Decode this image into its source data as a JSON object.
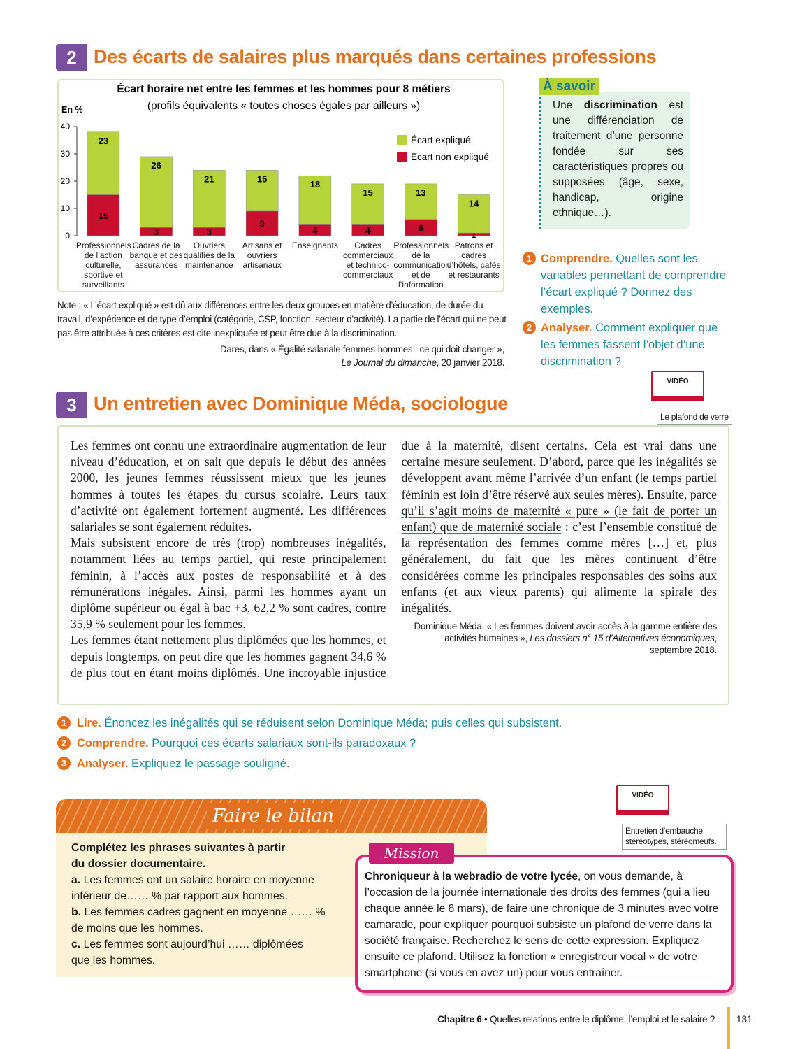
{
  "section2": {
    "number": "2",
    "title": "Des écarts de salaires plus marqués dans certaines professions"
  },
  "chart_data": {
    "type": "bar",
    "stacked": true,
    "title": "Écart horaire net entre les femmes et les hommes pour 8 métiers",
    "subtitle": "(profils équivalents « toutes choses égales par ailleurs »)",
    "y_label": "En %",
    "categories": [
      "Professionnels de l’action culturelle, sportive et surveillants",
      "Cadres de la banque et des assurances",
      "Ouvriers qualifiés de la maintenance",
      "Artisans et ouvriers artisanaux",
      "Enseignants",
      "Cadres commerciaux et technico-commerciaux",
      "Professionnels de la communication et de l’information",
      "Patrons et cadres d’hôtels, cafés et restaurants"
    ],
    "series": [
      {
        "name": "Écart non expliqué",
        "color": "#c8102e",
        "values": [
          15,
          3,
          3,
          9,
          4,
          4,
          6,
          1
        ]
      },
      {
        "name": "Écart expliqué",
        "color": "#b6d43a",
        "values": [
          23,
          26,
          21,
          15,
          18,
          15,
          13,
          14
        ]
      }
    ],
    "ylim": [
      0,
      40
    ],
    "yticks": [
      0,
      10,
      20,
      30,
      40
    ],
    "grid": false,
    "legend": "upper right"
  },
  "chart_note": "Note : « L’écart expliqué » est dû aux différences entre les deux groupes en matière d’éducation, de durée du travail, d’expérience et de type d’emploi (catégorie, CSP, fonction, secteur d’activité). La partie de l’écart qui ne peut pas être attribuée à ces critères est dite inexpliquée et peut être due à la discrimination.",
  "chart_source": {
    "text": "Dares, dans « Égalité salariale femmes-hommes : ce qui doit changer »,",
    "italic": "Le Journal du dimanche",
    "end": ", 20 janvier 2018."
  },
  "a_savoir": {
    "title": "À savoir",
    "before": "Une ",
    "bold": "discrimination",
    "after": " est une différenciation de traitement d’une personne fondée sur ses caractéristiques propres ou supposées (âge, sexe, handicap, origine ethnique…)."
  },
  "questions2": [
    {
      "number": "1",
      "label": "Comprendre.",
      "text": "Quelles sont les variables permettant de comprendre l’écart expliqué ? Donnez des exemples."
    },
    {
      "number": "2",
      "label": "Analyser.",
      "text": "Comment expliquer que les femmes fassent l’objet d’une discrimination ?"
    }
  ],
  "section3": {
    "number": "3",
    "title": "Un entretien avec Dominique Méda, sociologue"
  },
  "video1": {
    "badge": "VIDÉO",
    "caption": "Le plafond de verre"
  },
  "article": {
    "paragraphs": [
      "Les femmes ont connu une extraordinaire augmentation de leur niveau d’éducation, et on sait que depuis le début des années 2000, les jeunes femmes réussissent mieux que les jeunes hommes à toutes les étapes du cursus scolaire. Leurs taux d’activité ont également fortement augmenté. Les différences salariales se sont également réduites.",
      "Mais subsistent encore de très (trop) nombreuses inégalités, notamment liées au temps partiel, qui reste principalement féminin, à l’accès aux postes de responsabilité et à des rémunérations inégales. Ainsi, parmi les hommes ayant un diplôme supérieur ou égal à bac +3, 62,2 % sont cadres, contre 35,9 % seulement pour les femmes."
    ],
    "last_paragraph": {
      "before": "Les femmes étant nettement plus diplômées que les hommes, et depuis longtemps, on peut dire que les hommes gagnent 34,6 % de plus tout en étant moins diplômés. Une incroyable injustice due à la maternité, disent certains. Cela est vrai dans une certaine mesure seulement. D’abord, parce que les inégalités se développent avant même l’arrivée d’un enfant (le temps partiel féminin est loin d’être réservé aux seules mères). Ensuite, ",
      "underlined": "parce qu’il s’agit moins de maternité « pure » (le fait de porter un enfant) que de maternité sociale",
      "after": " : c’est l’ensemble constitué de la représentation des femmes comme mères […] et, plus généralement, du fait que les mères continuent d’être considérées comme les principales responsables des soins aux enfants (et aux vieux parents) qui alimente la spirale des inégalités."
    },
    "source": {
      "text": "Dominique Méda, « Les femmes doivent avoir accès à la gamme entière des activités humaines », ",
      "italic": "Les dossiers n° 15 d’Alternatives économiques",
      "end": ", septembre 2018."
    }
  },
  "questions3": [
    {
      "number": "1",
      "label": "Lire.",
      "text": "Énoncez les inégalités qui se réduisent selon Dominique Méda; puis celles qui subsistent."
    },
    {
      "number": "2",
      "label": "Comprendre.",
      "text": "Pourquoi ces écarts salariaux sont-ils paradoxaux ?"
    },
    {
      "number": "3",
      "label": "Analyser.",
      "text": "Expliquez le passage souligné."
    }
  ],
  "bilan": {
    "title": "Faire le bilan",
    "intro": "Complétez les phrases suivantes à partir du dossier documentaire.",
    "items": [
      {
        "label": "a.",
        "text": "Les femmes ont un salaire horaire en moyenne inférieur de…… % par rapport aux hommes."
      },
      {
        "label": "b.",
        "text": "Les femmes cadres gagnent en moyenne …… % de moins que les hommes."
      },
      {
        "label": "c.",
        "text": "Les femmes sont aujourd’hui …… diplômées que les hommes."
      }
    ]
  },
  "video2": {
    "badge": "VIDÉO",
    "caption": "Entretien d’embauche, stéréotypes, stéréomeufs."
  },
  "mission": {
    "title": "Mission",
    "bold": "Chroniqueur à la webradio de votre lycée",
    "text": ", on vous demande, à l’occasion de la journée internationale des droits des femmes (qui a lieu chaque année le 8 mars), de faire une chronique de 3 minutes avec votre camarade, pour expliquer pourquoi subsiste un plafond de verre dans la société française. Recherchez le sens de cette expression. Expliquez ensuite ce plafond. Utilisez la fonction « enregistreur vocal » de votre smartphone (si vous en avez un) pour vous entraîner."
  },
  "footer": {
    "chapter": "Chapitre 6",
    "title": " • Quelles relations entre le diplôme, l’emploi et le salaire ?",
    "page": "131"
  }
}
